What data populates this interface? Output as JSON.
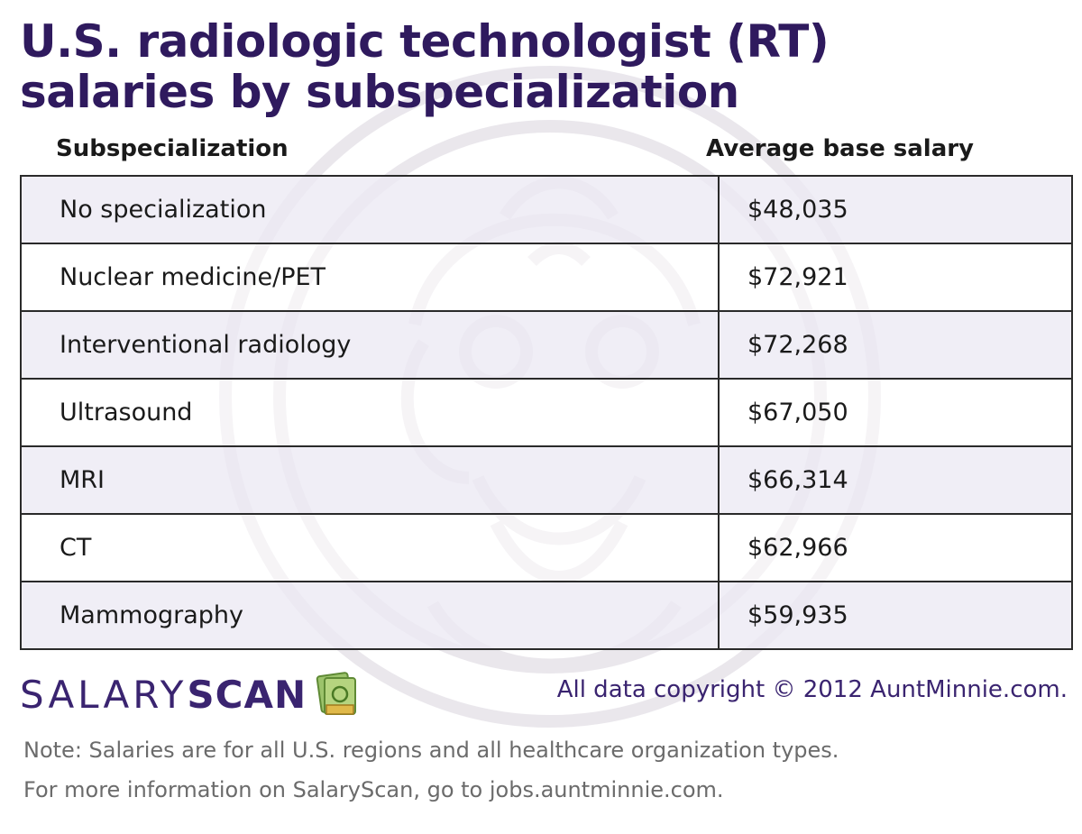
{
  "chart_data": {
    "type": "table",
    "title": [
      "U.S. radiologic technologist (RT)",
      "salaries by subspecialization"
    ],
    "columns": [
      "Subspecialization",
      "Average base salary"
    ],
    "rows": [
      [
        "No specialization",
        "$48,035"
      ],
      [
        "Nuclear medicine/PET",
        "$72,921"
      ],
      [
        "Interventional radiology",
        "$72,268"
      ],
      [
        "Ultrasound",
        "$67,050"
      ],
      [
        "MRI",
        "$66,314"
      ],
      [
        "CT",
        "$62,966"
      ],
      [
        "Mammography",
        "$59,935"
      ]
    ]
  },
  "brand": {
    "part1": "SALARY",
    "part2": "SCAN",
    "icon": "money-stack-icon"
  },
  "copyright": "All data copyright © 2012 AuntMinnie.com.",
  "notes": [
    "Note: Salaries are for all U.S. regions and all healthcare organization types.",
    "For more information on SalaryScan, go to jobs.auntminnie.com."
  ],
  "colors": {
    "title": "#2f1a5e",
    "brand": "#3a2470",
    "row_shade": "#ece9f3",
    "note": "#6b6b6b"
  }
}
